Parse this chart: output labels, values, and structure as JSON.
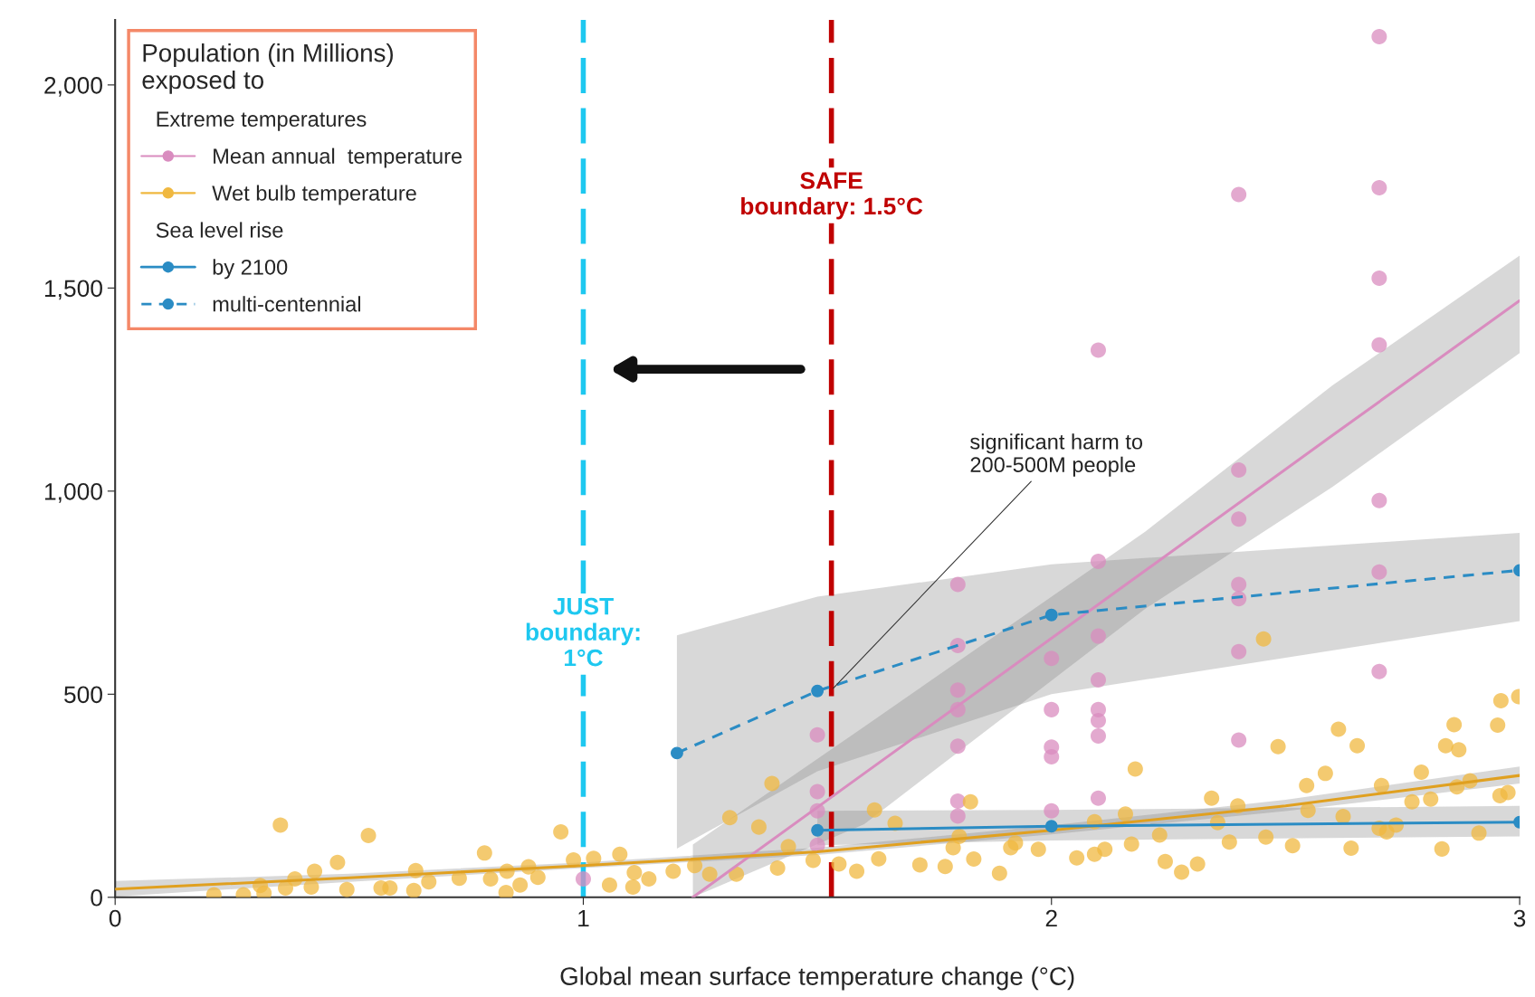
{
  "chart_data": {
    "type": "scatter",
    "xlabel": "Global mean surface temperature change (°C)",
    "legend_title": "Population (in Millions)\nexposed to",
    "xlim": [
      0,
      3
    ],
    "ylim": [
      0,
      2160
    ],
    "xticks": [
      0,
      1,
      2,
      3
    ],
    "yticks": [
      0,
      {
        "value": 500,
        "label": "500"
      },
      {
        "value": 1000,
        "label": "1,000"
      },
      {
        "value": 1500,
        "label": "1,500"
      },
      {
        "value": 2000,
        "label": "2,000"
      }
    ],
    "grid": false,
    "legend": "top left",
    "series": [
      {
        "name": "Mean annual  temperature",
        "color": "#d98cbf",
        "x": [
          1.0,
          1.5,
          1.5,
          1.5,
          1.5,
          1.8,
          1.8,
          1.8,
          1.8,
          1.8,
          1.8,
          1.8,
          2.0,
          2.0,
          2.0,
          2.0,
          2.0,
          2.1,
          2.1,
          2.1,
          2.1,
          2.1,
          2.1,
          2.1,
          2.1,
          2.4,
          2.4,
          2.4,
          2.4,
          2.4,
          2.4,
          2.4,
          2.7,
          2.7,
          2.7,
          2.7,
          2.7,
          2.7,
          2.7
        ],
        "values": [
          45,
          400,
          260,
          213,
          128,
          770,
          620,
          510,
          462,
          372,
          237,
          200,
          588,
          462,
          370,
          346,
          213,
          1347,
          827,
          643,
          535,
          462,
          435,
          397,
          244,
          1730,
          1052,
          931,
          770,
          735,
          605,
          387,
          2119,
          1747,
          1524,
          1360,
          977,
          801,
          556
        ]
      },
      {
        "type": "line",
        "color": "#d98cbf",
        "x": [
          1.234,
          1.6,
          2.2,
          2.6,
          3.0
        ],
        "values": [
          0,
          305,
          804,
          1137,
          1469
        ],
        "lower": [
          0,
          180,
          710,
          1010,
          1340
        ],
        "upper": [
          130,
          420,
          900,
          1260,
          1580
        ]
      },
      {
        "name": "Wet bulb temperature",
        "color": "#f0b840",
        "x": [
          0.353,
          0.541,
          0.475,
          0.426,
          0.384,
          0.31,
          0.211,
          0.274,
          0.318,
          0.364,
          0.419,
          0.495,
          0.568,
          0.587,
          0.642,
          0.638,
          0.67,
          0.735,
          0.789,
          0.802,
          0.837,
          0.835,
          0.865,
          0.883,
          0.903,
          0.952,
          0.979,
          1.022,
          1.078,
          1.056,
          1.109,
          1.106,
          1.14,
          1.192,
          1.238,
          1.27,
          1.327,
          1.313,
          1.375,
          1.403,
          1.415,
          1.438,
          1.491,
          1.546,
          1.584,
          1.622,
          1.631,
          1.666,
          1.719,
          1.773,
          1.827,
          1.834,
          1.803,
          1.79,
          1.889,
          1.913,
          1.923,
          1.972,
          2.054,
          2.092,
          2.114,
          2.092,
          2.171,
          2.158,
          2.179,
          2.231,
          2.243,
          2.278,
          2.312,
          2.342,
          2.355,
          2.398,
          2.38,
          2.453,
          2.458,
          2.484,
          2.515,
          2.545,
          2.548,
          2.585,
          2.613,
          2.653,
          2.623,
          2.64,
          2.705,
          2.7,
          2.736,
          2.716,
          2.77,
          2.79,
          2.81,
          2.842,
          2.87,
          2.86,
          2.834,
          2.866,
          2.894,
          2.913,
          2.953,
          2.96,
          2.958,
          2.975,
          2.998
        ],
        "values": [
          178,
          152,
          86,
          64,
          45,
          29,
          6,
          6,
          10,
          23,
          25,
          19,
          23,
          23,
          66,
          17,
          38,
          47,
          109,
          45,
          64,
          12,
          30,
          75,
          49,
          161,
          92,
          96,
          106,
          30,
          61,
          25,
          45,
          64,
          78,
          57,
          57,
          196,
          173,
          280,
          72,
          125,
          91,
          82,
          64,
          215,
          95,
          182,
          80,
          76,
          235,
          94,
          150,
          122,
          59,
          122,
          134,
          118,
          97,
          106,
          118,
          186,
          131,
          205,
          316,
          153,
          88,
          62,
          82,
          244,
          184,
          225,
          136,
          636,
          148,
          371,
          127,
          275,
          214,
          305,
          414,
          373,
          199,
          121,
          275,
          170,
          178,
          161,
          235,
          308,
          242,
          373,
          363,
          425,
          119,
          272,
          287,
          158,
          424,
          484,
          250,
          258,
          494
        ]
      },
      {
        "type": "line",
        "color": "#e0a020",
        "x": [
          0,
          0.5,
          1.0,
          1.5,
          2.0,
          2.5,
          3.0
        ],
        "values": [
          20,
          48,
          78,
          112,
          165,
          225,
          300
        ],
        "lower": [
          2,
          38,
          72,
          104,
          155,
          212,
          280
        ],
        "upper": [
          40,
          58,
          86,
          122,
          177,
          240,
          322
        ]
      },
      {
        "name": "by 2100",
        "type": "line",
        "color": "#2b8cc4",
        "marker": "circle",
        "line_style": "solid",
        "x": [
          1.5,
          2.0,
          3.0
        ],
        "values": [
          165,
          175,
          185
        ],
        "lower": [
          128,
          140,
          150
        ],
        "upper": [
          213,
          215,
          225
        ]
      },
      {
        "name": "multi-centennial",
        "type": "line",
        "color": "#2b8cc4",
        "marker": "circle",
        "line_style": "dashed",
        "x": [
          1.2,
          1.5,
          2.0,
          3.0
        ],
        "values": [
          355,
          508,
          695,
          805
        ],
        "lower": [
          120,
          310,
          500,
          680
        ],
        "upper": [
          645,
          740,
          820,
          897
        ]
      }
    ],
    "ref_lines": [
      {
        "axis": "x",
        "value": 1.0,
        "label": "JUST\nboundary:\n1°C",
        "color": "#1ec8f0",
        "line_style": "dashed"
      },
      {
        "axis": "x",
        "value": 1.53,
        "label": "SAFE\nboundary: 1.5°C",
        "color": "#c00000",
        "line_style": "dashed"
      }
    ],
    "annotations": [
      "Extreme temperatures",
      "Sea level rise",
      {
        "text": "significant harm to\n200-500M people",
        "x": 1.53,
        "y": 510
      }
    ]
  }
}
